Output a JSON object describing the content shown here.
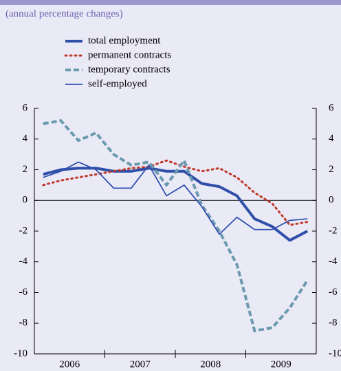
{
  "chart_data": {
    "type": "line",
    "subtitle": "(annual percentage changes)",
    "categories": [
      "2006",
      null,
      null,
      null,
      "2007",
      null,
      null,
      null,
      "2008",
      null,
      null,
      null,
      "2009",
      null,
      null,
      null
    ],
    "series": [
      {
        "name": "total employment",
        "color": "#2f4fa8",
        "style": "solid",
        "width": 4,
        "values": [
          1.7,
          2.0,
          2.1,
          2.1,
          1.9,
          1.9,
          2.1,
          1.9,
          1.9,
          1.1,
          0.9,
          0.3,
          -1.2,
          -1.7,
          -2.6,
          -2.0
        ]
      },
      {
        "name": "permanent contracts",
        "color": "#c0392b",
        "style": "dotted",
        "width": 3,
        "values": [
          1.0,
          1.3,
          1.5,
          1.7,
          1.9,
          2.1,
          2.2,
          2.6,
          2.2,
          1.9,
          2.1,
          1.5,
          0.5,
          -0.2,
          -1.6,
          -1.4
        ]
      },
      {
        "name": "temporary contracts",
        "color": "#6b9aae",
        "style": "dashed",
        "width": 4,
        "values": [
          5.0,
          5.2,
          3.9,
          4.4,
          3.0,
          2.3,
          2.5,
          1.0,
          2.6,
          -0.3,
          -2.0,
          -4.2,
          -8.5,
          -8.3,
          -7.0,
          -5.2
        ]
      },
      {
        "name": "self-employed",
        "color": "#3050b0",
        "style": "solid",
        "width": 1.8,
        "values": [
          1.5,
          1.9,
          2.5,
          2.0,
          0.8,
          0.8,
          2.3,
          0.3,
          1.0,
          -0.4,
          -2.2,
          -1.1,
          -1.9,
          -1.9,
          -1.3,
          -1.2
        ]
      }
    ],
    "ylim": [
      -10,
      6
    ],
    "yticks": [
      -10,
      -8,
      -6,
      -4,
      -2,
      0,
      2,
      4,
      6
    ],
    "y2lim": [
      -10,
      6
    ],
    "y2ticks": [
      -10,
      -8,
      -6,
      -4,
      -2,
      0,
      2,
      4,
      6
    ]
  }
}
